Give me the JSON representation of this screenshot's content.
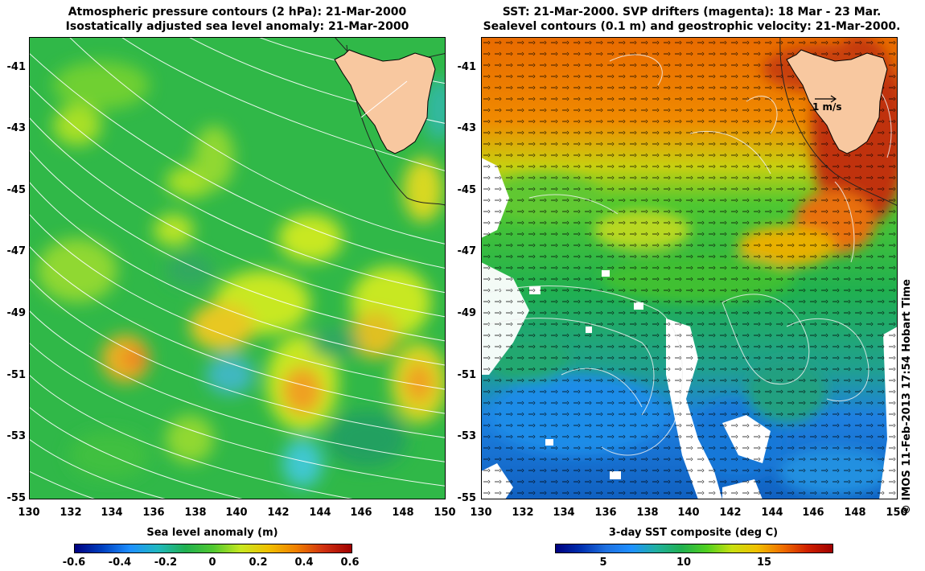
{
  "left": {
    "title_line1": "Atmospheric pressure contours (2 hPa): 21-Mar-2000",
    "title_line2": "Isostatically adjusted sea level anomaly: 21-Mar-2000",
    "colorbar_label": "Sea level anomaly (m)",
    "colorbar_ticks": [
      "-0.6",
      "-0.4",
      "-0.2",
      "0",
      "0.2",
      "0.4",
      "0.6"
    ]
  },
  "right": {
    "title_line1": "SST: 21-Mar-2000. SVP drifters (magenta): 18 Mar - 23 Mar.",
    "title_line2": "Sealevel contours (0.1 m) and geostrophic velocity: 21-Mar-2000.",
    "colorbar_label": "3-day SST composite (deg C)",
    "colorbar_ticks": [
      "5",
      "10",
      "15"
    ],
    "vector_scale_label": "1 m/s"
  },
  "y_ticks": [
    "-41",
    "-43",
    "-45",
    "-47",
    "-49",
    "-51",
    "-53",
    "-55"
  ],
  "x_ticks": [
    "130",
    "132",
    "134",
    "136",
    "138",
    "140",
    "142",
    "144",
    "146",
    "148",
    "150"
  ],
  "credit": "© IMOS 11-Feb-2013 17:54 Hobart Time",
  "map": {
    "lon_range": [
      130,
      150
    ],
    "lat_range": [
      -55,
      -40
    ],
    "land_color": "#f8c8a0",
    "sla_palette": [
      "#000080",
      "#1e90ff",
      "#20b050",
      "#3cc830",
      "#c8e820",
      "#f0a020",
      "#c02020"
    ],
    "sst_palette": [
      "#0010a0",
      "#1e90ff",
      "#20b060",
      "#40d020",
      "#f0c000",
      "#f06000",
      "#b01000"
    ]
  }
}
